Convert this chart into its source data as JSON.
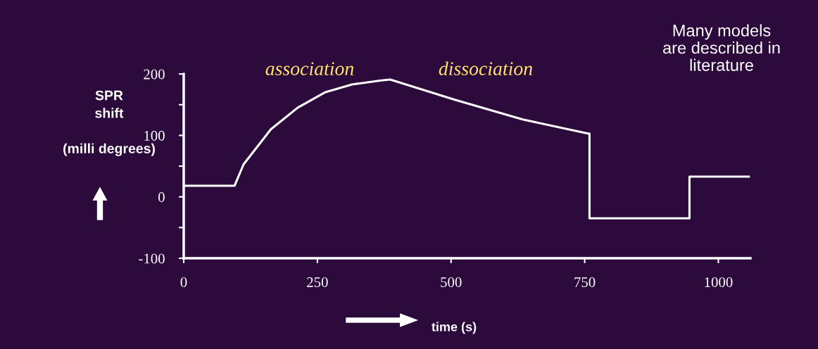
{
  "chart_data": {
    "type": "line",
    "ylabel": "SPR\nshift\n\n(milli degrees)",
    "xlabel": "time (s)",
    "annotations": [
      "association",
      "dissociation",
      "Many models\nare described in\nliterature"
    ],
    "x": [
      0,
      95,
      112,
      163,
      213,
      264,
      315,
      365,
      386,
      507,
      634,
      756,
      759,
      759,
      946,
      946,
      1057
    ],
    "series": [
      {
        "color": "#ffffff",
        "values": [
          18,
          18,
          53,
          110,
          145,
          170,
          183,
          189,
          191,
          158,
          126,
          103,
          103,
          -35,
          -35,
          33,
          33
        ]
      }
    ],
    "xlim": [
      0,
      1060
    ],
    "xticks": [
      0,
      250,
      500,
      750,
      1000
    ],
    "ylim": [
      -100,
      200
    ],
    "yticks": [
      -100,
      {
        "value": -50,
        "label": null
      },
      0,
      {
        "value": 50,
        "label": null
      },
      100,
      {
        "value": 150,
        "label": null
      },
      200
    ],
    "grid": false,
    "legend": false,
    "marker": "none",
    "line_style": "solid"
  }
}
